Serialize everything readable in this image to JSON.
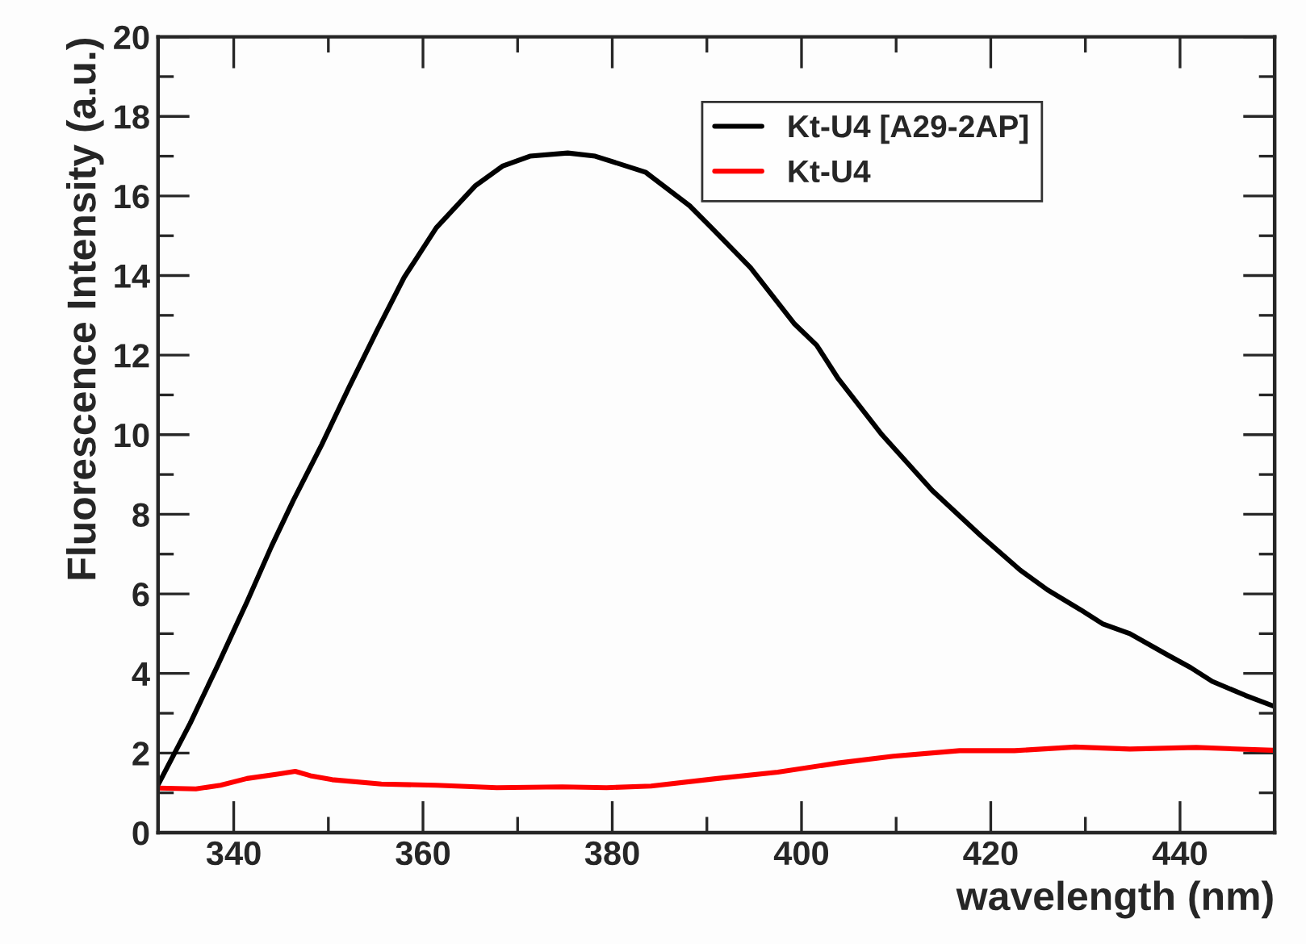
{
  "chart_data": {
    "type": "line",
    "xlabel": "wavelength (nm)",
    "ylabel": "Fluorescence Intensity (a.u.)",
    "xlim": [
      332,
      450
    ],
    "xticks": [
      340,
      360,
      380,
      400,
      420,
      440
    ],
    "ylim": [
      0,
      20
    ],
    "yticks": [
      0,
      2,
      4,
      6,
      8,
      10,
      12,
      14,
      16,
      18,
      20
    ],
    "grid": false,
    "legend": "top right",
    "marker": "none",
    "line_style": "solid",
    "series": [
      {
        "name": "Kt-U4 [A29-2AP]",
        "color": "#000000",
        "x": [
          332,
          335.4,
          338.3,
          341.4,
          344,
          346.3,
          349.3,
          352.2,
          355.1,
          358,
          361.4,
          365.5,
          368.4,
          371.3,
          375.3,
          378.2,
          383.5,
          388.2,
          390.5,
          394.6,
          399.2,
          401.6,
          403.9,
          408.5,
          413.8,
          419,
          423.1,
          426,
          429.5,
          431.8,
          434.7,
          438.8,
          441.1,
          443.4,
          446.9,
          450
        ],
        "values": [
          1.2,
          2.75,
          4.2,
          5.8,
          7.2,
          8.35,
          9.75,
          11.2,
          12.6,
          13.95,
          15.2,
          16.25,
          16.75,
          17.0,
          17.08,
          17.0,
          16.6,
          15.75,
          15.2,
          14.2,
          12.8,
          12.25,
          11.4,
          10.0,
          8.6,
          7.45,
          6.6,
          6.1,
          5.6,
          5.25,
          5.0,
          4.45,
          4.15,
          3.8,
          3.45,
          3.17
        ]
      },
      {
        "name": "Kt-U4",
        "color": "#ff0000",
        "x": [
          332,
          336,
          338.6,
          341.4,
          344.6,
          346.5,
          348.1,
          350.4,
          355.6,
          361.4,
          367.8,
          374.7,
          379.4,
          384.1,
          391.1,
          397.5,
          403.9,
          409.7,
          416.7,
          422.5,
          428.9,
          434.7,
          441.7,
          449.8
        ],
        "values": [
          1.12,
          1.1,
          1.19,
          1.36,
          1.47,
          1.54,
          1.43,
          1.33,
          1.22,
          1.19,
          1.13,
          1.15,
          1.13,
          1.17,
          1.36,
          1.52,
          1.75,
          1.92,
          2.06,
          2.06,
          2.15,
          2.1,
          2.14,
          2.07
        ]
      }
    ]
  }
}
